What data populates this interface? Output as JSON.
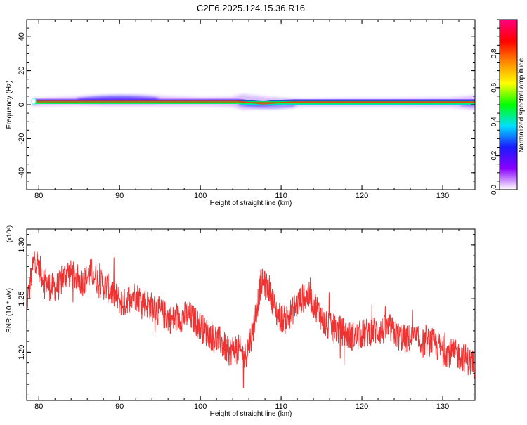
{
  "title": "C2E6.2025.124.15.36.R16",
  "colors": {
    "snr_line": "#ee3333",
    "background": "#ffffff",
    "axes": "#000000"
  },
  "chart_data": [
    {
      "type": "heatmap",
      "name": "spectrogram",
      "xlabel": "Height of straight line (km)",
      "ylabel": "Frequency (Hz)",
      "xlim": [
        78.5,
        134
      ],
      "ylim": [
        -50,
        50
      ],
      "x_ticks": [
        "80",
        "90",
        "100",
        "110",
        "120",
        "130"
      ],
      "y_ticks": [
        "-40",
        "-20",
        "0",
        "20",
        "40"
      ],
      "colorbar": {
        "label": "Normalized spectral amplitude",
        "range": [
          0,
          1
        ],
        "ticks": [
          "0.0",
          "0.2",
          "0.4",
          "0.6",
          "0.8"
        ],
        "colormap": [
          "#ffffff",
          "#8a00ff",
          "#1a1aff",
          "#00e0ff",
          "#00ff00",
          "#ffff00",
          "#ff8800",
          "#ff0000",
          "#ff0080"
        ]
      },
      "band": {
        "center_hz": 1.5,
        "features": [
          {
            "x_start": 79.5,
            "x_end": 104.5,
            "center_hz": 1.5,
            "halo_high_hz": 4
          },
          {
            "x_start": 104.5,
            "x_end": 110,
            "center_hz": 0,
            "halo_high_hz": 3
          },
          {
            "x_start": 110,
            "x_end": 134,
            "center_hz": 1.5,
            "halo_high_hz": 3.5
          }
        ]
      }
    },
    {
      "type": "line",
      "name": "snr",
      "xlabel": "Height of straight line (km)",
      "ylabel": "SNR (10 * v/v)",
      "y_multiplier": "(x10⁴)",
      "xlim": [
        78.5,
        134
      ],
      "ylim": [
        1.155,
        1.315
      ],
      "x_ticks": [
        "80",
        "90",
        "100",
        "110",
        "120",
        "130"
      ],
      "y_ticks": [
        "1.20",
        "1.25",
        "1.30"
      ],
      "series": [
        {
          "x": [
            78.5,
            79.5,
            80.5,
            81.5,
            82.5,
            83.5,
            84.5,
            85.5,
            86.5,
            87.5,
            88.5,
            89.5,
            90.5,
            91.5,
            92.5,
            93.5,
            94.5,
            95.5,
            96.5,
            97.5,
            98.5,
            99.5,
            100.5,
            101.5,
            102.5,
            103.5,
            104.5,
            105.5,
            106.5,
            107.5,
            108.5,
            109.5,
            110.5,
            111.5,
            112.5,
            113.5,
            114.5,
            115.5,
            116.5,
            117.5,
            118.5,
            119.5,
            120.5,
            121.5,
            122.5,
            123.5,
            124.5,
            125.5,
            126.5,
            127.5,
            128.5,
            129.5,
            130.5,
            131.5,
            132.5,
            133.5,
            134
          ],
          "values": [
            1.245,
            1.29,
            1.27,
            1.26,
            1.262,
            1.275,
            1.27,
            1.265,
            1.275,
            1.265,
            1.26,
            1.252,
            1.245,
            1.255,
            1.25,
            1.245,
            1.24,
            1.235,
            1.23,
            1.232,
            1.235,
            1.228,
            1.22,
            1.215,
            1.21,
            1.2,
            1.205,
            1.195,
            1.22,
            1.265,
            1.26,
            1.235,
            1.23,
            1.24,
            1.25,
            1.252,
            1.24,
            1.225,
            1.222,
            1.22,
            1.215,
            1.215,
            1.218,
            1.22,
            1.22,
            1.222,
            1.215,
            1.212,
            1.213,
            1.208,
            1.21,
            1.205,
            1.2,
            1.198,
            1.196,
            1.19,
            1.188
          ]
        }
      ]
    }
  ]
}
